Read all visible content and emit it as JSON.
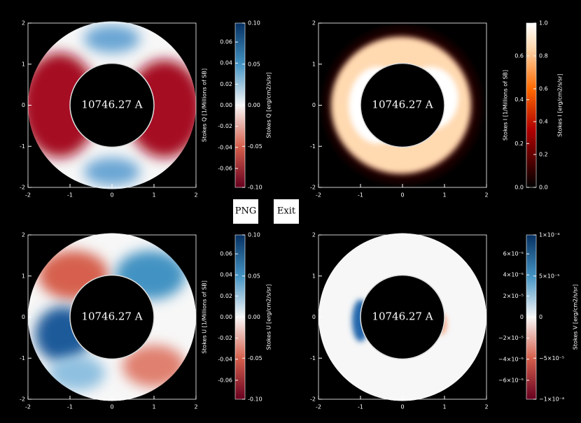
{
  "panels": [
    {
      "label": "10746.27 A",
      "xlim": [
        -2,
        2
      ],
      "ylim": [
        -2,
        2
      ],
      "xticks": [
        -2,
        -1,
        0,
        1,
        2
      ],
      "yticks": [
        -2,
        -1,
        0,
        1,
        2
      ],
      "colorbar": {
        "left_title": "Stokes Q [1/Millions of SB]",
        "right_title": "Stokes Q [erg/cm2/s/sr]",
        "left_lim": [
          -0.078,
          0.078
        ],
        "left_ticks": [
          {
            "value": 0.06,
            "label": "0.06"
          },
          {
            "value": 0.04,
            "label": "0.04"
          },
          {
            "value": 0.02,
            "label": "0.02"
          },
          {
            "value": 0,
            "label": "0.00"
          },
          {
            "value": -0.02,
            "label": "-0.02"
          },
          {
            "value": -0.04,
            "label": "-0.04"
          },
          {
            "value": -0.06,
            "label": "-0.06"
          }
        ],
        "right_lim": [
          -0.1,
          0.1
        ],
        "right_ticks": [
          {
            "value": 0.1,
            "label": "0.10"
          },
          {
            "value": 0.05,
            "label": "0.05"
          },
          {
            "value": 0,
            "label": "0.00"
          },
          {
            "value": -0.05,
            "label": "-0.05"
          },
          {
            "value": -0.1,
            "label": "-0.10"
          }
        ]
      }
    },
    {
      "label": "10746.27 A",
      "xlim": [
        -2,
        2
      ],
      "ylim": [
        -2,
        2
      ],
      "xticks": [
        -2,
        -1,
        0,
        1,
        2
      ],
      "yticks": [
        -2,
        -1,
        0,
        1,
        2
      ],
      "colorbar": {
        "left_title": "Stokes I [1/Millions of SB]",
        "right_title": "Stokes I [erg/cm2/s/sr]",
        "left_lim": [
          0,
          0.75
        ],
        "left_ticks": [
          {
            "value": 0,
            "label": "0.0"
          },
          {
            "value": 0.2,
            "label": "0.2"
          },
          {
            "value": 0.4,
            "label": "0.4"
          },
          {
            "value": 0.6,
            "label": "0.6"
          }
        ],
        "right_lim": [
          0,
          1
        ],
        "right_ticks": [
          {
            "value": 0,
            "label": "0.0"
          },
          {
            "value": 0.2,
            "label": "0.2"
          },
          {
            "value": 0.4,
            "label": "0.4"
          },
          {
            "value": 0.6,
            "label": "0.6"
          },
          {
            "value": 0.8,
            "label": "0.8"
          },
          {
            "value": 1,
            "label": "1.0"
          }
        ]
      }
    },
    {
      "label": "10746.27 A",
      "xlim": [
        -2,
        2
      ],
      "ylim": [
        -2,
        2
      ],
      "xticks": [
        -2,
        -1,
        0,
        1,
        2
      ],
      "yticks": [
        -2,
        -1,
        0,
        1,
        2
      ],
      "colorbar": {
        "left_title": "Stokes U [1/Millions of SB]",
        "right_title": "Stokes U [erg/cm2/s/sr]",
        "left_lim": [
          -0.078,
          0.078
        ],
        "left_ticks": [
          {
            "value": 0.06,
            "label": "0.06"
          },
          {
            "value": 0.04,
            "label": "0.04"
          },
          {
            "value": 0.02,
            "label": "0.02"
          },
          {
            "value": 0,
            "label": "0.00"
          },
          {
            "value": -0.02,
            "label": "-0.02"
          },
          {
            "value": -0.04,
            "label": "-0.04"
          },
          {
            "value": -0.06,
            "label": "-0.06"
          }
        ],
        "right_lim": [
          -0.1,
          0.1
        ],
        "right_ticks": [
          {
            "value": 0.1,
            "label": "0.10"
          },
          {
            "value": 0.05,
            "label": "0.05"
          },
          {
            "value": 0,
            "label": "0.00"
          },
          {
            "value": -0.05,
            "label": "-0.05"
          },
          {
            "value": -0.1,
            "label": "-0.10"
          }
        ]
      }
    },
    {
      "label": "10746.27 A",
      "xlim": [
        -2,
        2
      ],
      "ylim": [
        -2,
        2
      ],
      "xticks": [
        -2,
        -1,
        0,
        1,
        2
      ],
      "yticks": [
        -2,
        -1,
        0,
        1,
        2
      ],
      "colorbar": {
        "right_title": "Stokes V [erg/cm2/s/sr]",
        "left_lim": [
          -7.8e-05,
          7.8e-05
        ],
        "left_ticks": [
          {
            "value": 6e-05,
            "label": "6×10⁻⁵"
          },
          {
            "value": 4e-05,
            "label": "4×10⁻⁵"
          },
          {
            "value": 2e-05,
            "label": "2×10⁻⁵"
          },
          {
            "value": 0,
            "label": "0"
          },
          {
            "value": -2e-05,
            "label": "−2×10⁻⁵"
          },
          {
            "value": -4e-05,
            "label": "−4×10⁻⁵"
          },
          {
            "value": -6e-05,
            "label": "−6×10⁻⁵"
          }
        ],
        "right_lim": [
          -0.0001,
          0.0001
        ],
        "right_ticks": [
          {
            "value": 0.0001,
            "label": "1×10⁻⁴"
          },
          {
            "value": 5e-05,
            "label": "5×10⁻⁵"
          },
          {
            "value": 0,
            "label": "0"
          },
          {
            "value": -5e-05,
            "label": "−5×10⁻⁵"
          },
          {
            "value": -0.0001,
            "label": "−1×10⁻⁴"
          }
        ]
      }
    }
  ],
  "buttons": [
    "PNG",
    "Exit"
  ]
}
